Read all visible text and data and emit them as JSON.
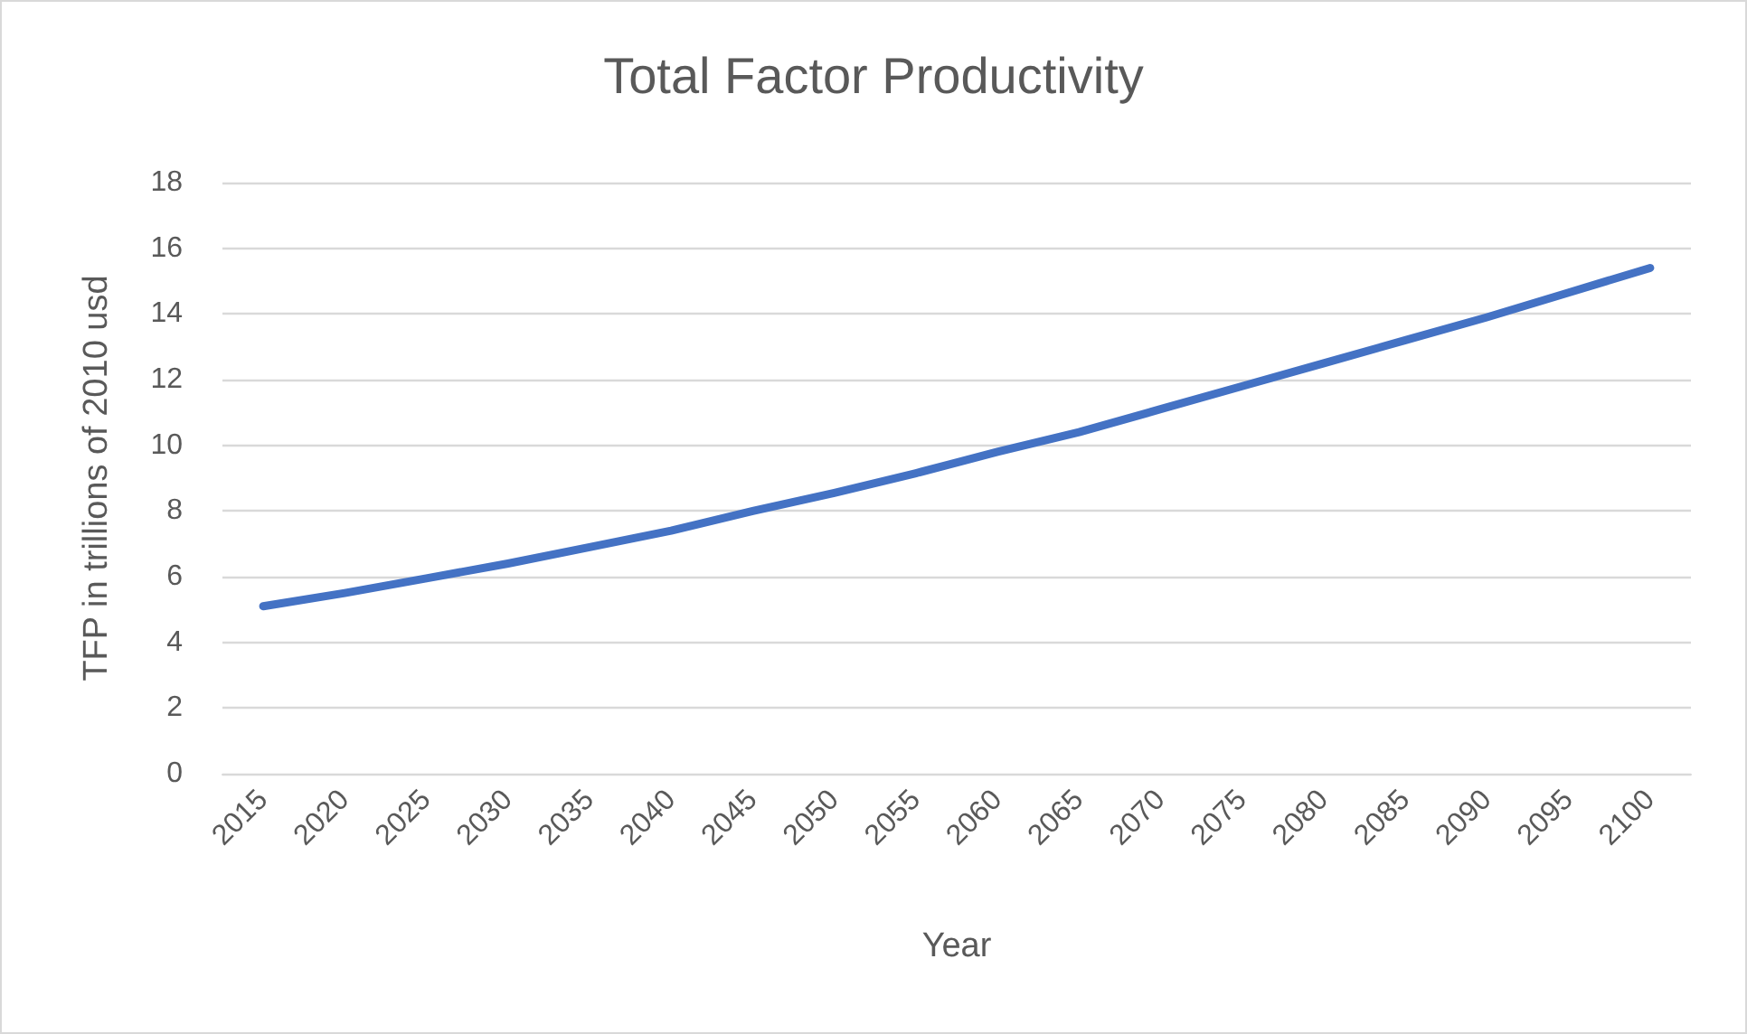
{
  "chart_data": {
    "type": "line",
    "title": "Total Factor Productivity",
    "xlabel": "Year",
    "ylabel": "TFP in trillions of 2010 usd",
    "categories": [
      "2015",
      "2020",
      "2025",
      "2030",
      "2035",
      "2040",
      "2045",
      "2050",
      "2055",
      "2060",
      "2065",
      "2070",
      "2075",
      "2080",
      "2085",
      "2090",
      "2095",
      "2100"
    ],
    "series": [
      {
        "color": "#4472c4",
        "values": [
          5.1,
          5.5,
          5.95,
          6.4,
          6.9,
          7.4,
          8.0,
          8.55,
          9.15,
          9.8,
          10.4,
          11.1,
          11.8,
          12.5,
          13.2,
          13.9,
          14.65,
          15.4
        ]
      }
    ],
    "ylim": [
      0,
      18
    ],
    "yticks": [
      0,
      2,
      4,
      6,
      8,
      10,
      12,
      14,
      16,
      18
    ],
    "grid": "y",
    "marker": "none",
    "line_style": "solid"
  }
}
